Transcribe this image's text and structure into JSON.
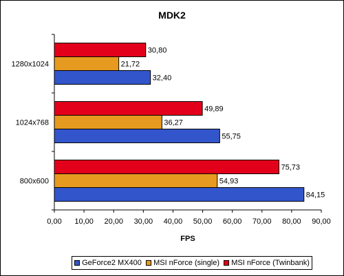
{
  "chart_data": {
    "type": "bar",
    "orientation": "horizontal",
    "title": "MDK2",
    "xlabel": "FPS",
    "ylabel": "",
    "categories": [
      "1280x1024",
      "1024x768",
      "800x600"
    ],
    "series": [
      {
        "name": "GeForce2 MX400",
        "color": "#3355cc",
        "values": [
          32.4,
          55.75,
          84.15
        ],
        "labels": [
          "32,40",
          "55,75",
          "84,15"
        ]
      },
      {
        "name": "MSI nForce (single)",
        "color": "#e69a1f",
        "values": [
          21.72,
          36.27,
          54.93
        ],
        "labels": [
          "21,72",
          "36,27",
          "54,93"
        ]
      },
      {
        "name": "MSI nForce (Twinbank)",
        "color": "#e3001b",
        "values": [
          30.8,
          49.89,
          75.73
        ],
        "labels": [
          "30,80",
          "49,89",
          "75,73"
        ]
      }
    ],
    "xlim": [
      0,
      90
    ],
    "xticks": [
      0,
      10,
      20,
      30,
      40,
      50,
      60,
      70,
      80,
      90
    ],
    "xtick_labels": [
      "0,00",
      "10,00",
      "20,00",
      "30,00",
      "40,00",
      "50,00",
      "60,00",
      "70,00",
      "80,00",
      "90,00"
    ],
    "grid": false,
    "legend_position": "bottom"
  }
}
